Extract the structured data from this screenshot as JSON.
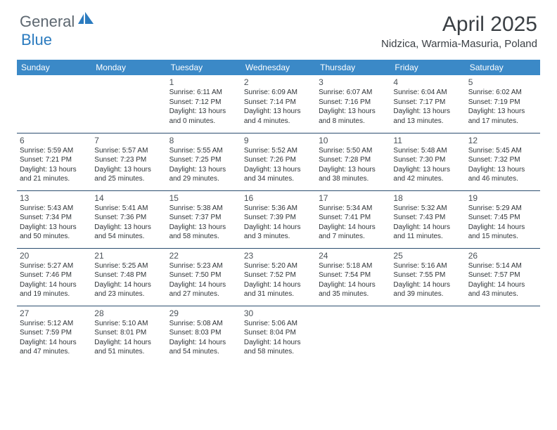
{
  "brand": {
    "part1": "General",
    "part2": "Blue"
  },
  "title": "April 2025",
  "location": "Nidzica, Warmia-Masuria, Poland",
  "colors": {
    "header_bg": "#3b89c7",
    "header_text": "#ffffff",
    "rule": "#2c4e6f",
    "logo_gray": "#5d6770",
    "logo_blue": "#2b7bbf",
    "body_text": "#2f3438"
  },
  "weekdays": [
    "Sunday",
    "Monday",
    "Tuesday",
    "Wednesday",
    "Thursday",
    "Friday",
    "Saturday"
  ],
  "weeks": [
    [
      null,
      null,
      {
        "n": "1",
        "sr": "Sunrise: 6:11 AM",
        "ss": "Sunset: 7:12 PM",
        "d1": "Daylight: 13 hours",
        "d2": "and 0 minutes."
      },
      {
        "n": "2",
        "sr": "Sunrise: 6:09 AM",
        "ss": "Sunset: 7:14 PM",
        "d1": "Daylight: 13 hours",
        "d2": "and 4 minutes."
      },
      {
        "n": "3",
        "sr": "Sunrise: 6:07 AM",
        "ss": "Sunset: 7:16 PM",
        "d1": "Daylight: 13 hours",
        "d2": "and 8 minutes."
      },
      {
        "n": "4",
        "sr": "Sunrise: 6:04 AM",
        "ss": "Sunset: 7:17 PM",
        "d1": "Daylight: 13 hours",
        "d2": "and 13 minutes."
      },
      {
        "n": "5",
        "sr": "Sunrise: 6:02 AM",
        "ss": "Sunset: 7:19 PM",
        "d1": "Daylight: 13 hours",
        "d2": "and 17 minutes."
      }
    ],
    [
      {
        "n": "6",
        "sr": "Sunrise: 5:59 AM",
        "ss": "Sunset: 7:21 PM",
        "d1": "Daylight: 13 hours",
        "d2": "and 21 minutes."
      },
      {
        "n": "7",
        "sr": "Sunrise: 5:57 AM",
        "ss": "Sunset: 7:23 PM",
        "d1": "Daylight: 13 hours",
        "d2": "and 25 minutes."
      },
      {
        "n": "8",
        "sr": "Sunrise: 5:55 AM",
        "ss": "Sunset: 7:25 PM",
        "d1": "Daylight: 13 hours",
        "d2": "and 29 minutes."
      },
      {
        "n": "9",
        "sr": "Sunrise: 5:52 AM",
        "ss": "Sunset: 7:26 PM",
        "d1": "Daylight: 13 hours",
        "d2": "and 34 minutes."
      },
      {
        "n": "10",
        "sr": "Sunrise: 5:50 AM",
        "ss": "Sunset: 7:28 PM",
        "d1": "Daylight: 13 hours",
        "d2": "and 38 minutes."
      },
      {
        "n": "11",
        "sr": "Sunrise: 5:48 AM",
        "ss": "Sunset: 7:30 PM",
        "d1": "Daylight: 13 hours",
        "d2": "and 42 minutes."
      },
      {
        "n": "12",
        "sr": "Sunrise: 5:45 AM",
        "ss": "Sunset: 7:32 PM",
        "d1": "Daylight: 13 hours",
        "d2": "and 46 minutes."
      }
    ],
    [
      {
        "n": "13",
        "sr": "Sunrise: 5:43 AM",
        "ss": "Sunset: 7:34 PM",
        "d1": "Daylight: 13 hours",
        "d2": "and 50 minutes."
      },
      {
        "n": "14",
        "sr": "Sunrise: 5:41 AM",
        "ss": "Sunset: 7:36 PM",
        "d1": "Daylight: 13 hours",
        "d2": "and 54 minutes."
      },
      {
        "n": "15",
        "sr": "Sunrise: 5:38 AM",
        "ss": "Sunset: 7:37 PM",
        "d1": "Daylight: 13 hours",
        "d2": "and 58 minutes."
      },
      {
        "n": "16",
        "sr": "Sunrise: 5:36 AM",
        "ss": "Sunset: 7:39 PM",
        "d1": "Daylight: 14 hours",
        "d2": "and 3 minutes."
      },
      {
        "n": "17",
        "sr": "Sunrise: 5:34 AM",
        "ss": "Sunset: 7:41 PM",
        "d1": "Daylight: 14 hours",
        "d2": "and 7 minutes."
      },
      {
        "n": "18",
        "sr": "Sunrise: 5:32 AM",
        "ss": "Sunset: 7:43 PM",
        "d1": "Daylight: 14 hours",
        "d2": "and 11 minutes."
      },
      {
        "n": "19",
        "sr": "Sunrise: 5:29 AM",
        "ss": "Sunset: 7:45 PM",
        "d1": "Daylight: 14 hours",
        "d2": "and 15 minutes."
      }
    ],
    [
      {
        "n": "20",
        "sr": "Sunrise: 5:27 AM",
        "ss": "Sunset: 7:46 PM",
        "d1": "Daylight: 14 hours",
        "d2": "and 19 minutes."
      },
      {
        "n": "21",
        "sr": "Sunrise: 5:25 AM",
        "ss": "Sunset: 7:48 PM",
        "d1": "Daylight: 14 hours",
        "d2": "and 23 minutes."
      },
      {
        "n": "22",
        "sr": "Sunrise: 5:23 AM",
        "ss": "Sunset: 7:50 PM",
        "d1": "Daylight: 14 hours",
        "d2": "and 27 minutes."
      },
      {
        "n": "23",
        "sr": "Sunrise: 5:20 AM",
        "ss": "Sunset: 7:52 PM",
        "d1": "Daylight: 14 hours",
        "d2": "and 31 minutes."
      },
      {
        "n": "24",
        "sr": "Sunrise: 5:18 AM",
        "ss": "Sunset: 7:54 PM",
        "d1": "Daylight: 14 hours",
        "d2": "and 35 minutes."
      },
      {
        "n": "25",
        "sr": "Sunrise: 5:16 AM",
        "ss": "Sunset: 7:55 PM",
        "d1": "Daylight: 14 hours",
        "d2": "and 39 minutes."
      },
      {
        "n": "26",
        "sr": "Sunrise: 5:14 AM",
        "ss": "Sunset: 7:57 PM",
        "d1": "Daylight: 14 hours",
        "d2": "and 43 minutes."
      }
    ],
    [
      {
        "n": "27",
        "sr": "Sunrise: 5:12 AM",
        "ss": "Sunset: 7:59 PM",
        "d1": "Daylight: 14 hours",
        "d2": "and 47 minutes."
      },
      {
        "n": "28",
        "sr": "Sunrise: 5:10 AM",
        "ss": "Sunset: 8:01 PM",
        "d1": "Daylight: 14 hours",
        "d2": "and 51 minutes."
      },
      {
        "n": "29",
        "sr": "Sunrise: 5:08 AM",
        "ss": "Sunset: 8:03 PM",
        "d1": "Daylight: 14 hours",
        "d2": "and 54 minutes."
      },
      {
        "n": "30",
        "sr": "Sunrise: 5:06 AM",
        "ss": "Sunset: 8:04 PM",
        "d1": "Daylight: 14 hours",
        "d2": "and 58 minutes."
      },
      null,
      null,
      null
    ]
  ]
}
